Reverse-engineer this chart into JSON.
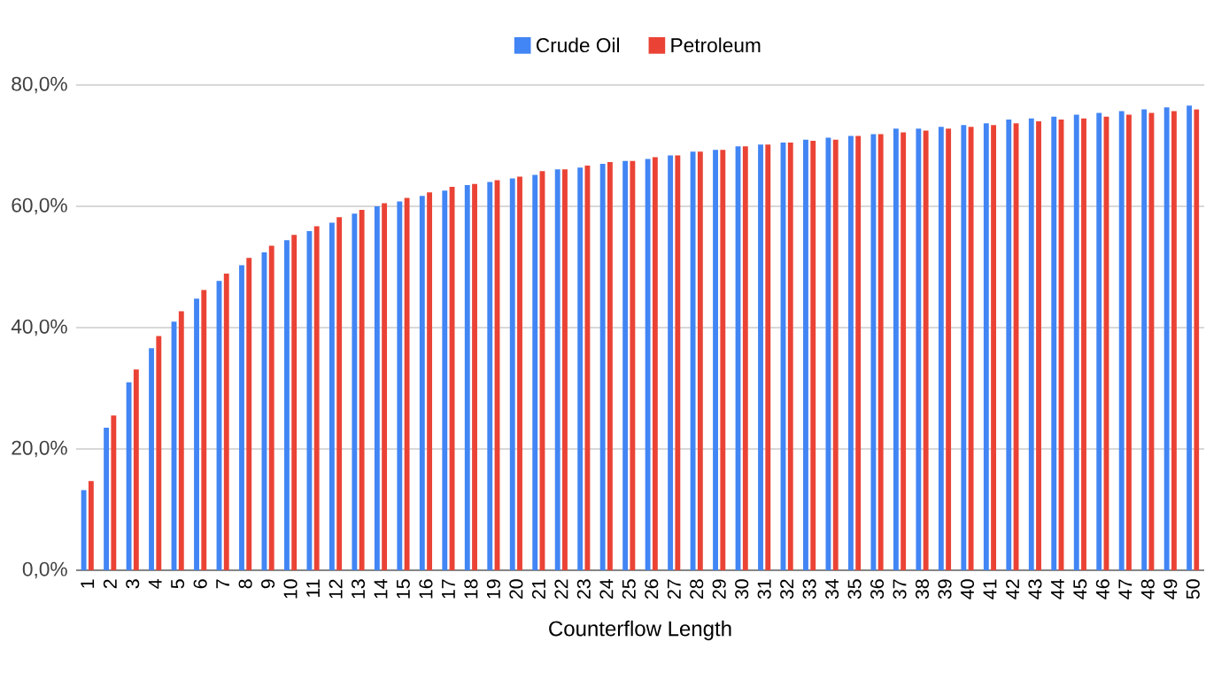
{
  "chart_data": {
    "type": "bar",
    "xlabel": "Counterflow Length",
    "categories": [
      "1",
      "2",
      "3",
      "4",
      "5",
      "6",
      "7",
      "8",
      "9",
      "10",
      "11",
      "12",
      "13",
      "14",
      "15",
      "16",
      "17",
      "18",
      "19",
      "20",
      "21",
      "22",
      "23",
      "24",
      "25",
      "26",
      "27",
      "28",
      "29",
      "30",
      "31",
      "32",
      "33",
      "34",
      "35",
      "36",
      "37",
      "38",
      "39",
      "40",
      "41",
      "42",
      "43",
      "44",
      "45",
      "46",
      "47",
      "48",
      "49",
      "50"
    ],
    "series": [
      {
        "name": "Crude Oil",
        "color": "#4285f4",
        "values": [
          13.2,
          23.5,
          31.0,
          36.6,
          41.0,
          44.8,
          47.7,
          50.3,
          52.4,
          54.4,
          55.9,
          57.3,
          58.8,
          60.0,
          60.8,
          61.7,
          62.6,
          63.5,
          64.0,
          64.6,
          65.2,
          66.1,
          66.4,
          67.0,
          67.5,
          67.8,
          68.4,
          69.0,
          69.3,
          69.9,
          70.2,
          70.5,
          71.0,
          71.3,
          71.6,
          71.9,
          72.8,
          72.8,
          73.1,
          73.4,
          73.7,
          74.3,
          74.5,
          74.8,
          75.1,
          75.4,
          75.7,
          76.0,
          76.3,
          76.6
        ]
      },
      {
        "name": "Petroleum",
        "color": "#ea4335",
        "values": [
          14.7,
          25.5,
          33.1,
          38.6,
          42.7,
          46.2,
          48.9,
          51.5,
          53.5,
          55.3,
          56.7,
          58.2,
          59.4,
          60.5,
          61.4,
          62.3,
          63.2,
          63.7,
          64.3,
          64.9,
          65.8,
          66.1,
          66.7,
          67.3,
          67.5,
          68.1,
          68.4,
          69.0,
          69.3,
          69.9,
          70.2,
          70.5,
          70.8,
          71.0,
          71.6,
          71.9,
          72.2,
          72.5,
          72.8,
          73.1,
          73.4,
          73.7,
          74.0,
          74.3,
          74.5,
          74.8,
          75.1,
          75.4,
          75.7,
          76.0
        ]
      }
    ],
    "ylim": [
      0,
      80
    ],
    "yticks": [
      {
        "value": 0,
        "label": "0,0%"
      },
      {
        "value": 20,
        "label": "20,0%"
      },
      {
        "value": 40,
        "label": "40,0%"
      },
      {
        "value": 60,
        "label": "60,0%"
      },
      {
        "value": 80,
        "label": "80,0%"
      }
    ],
    "grid": "y",
    "legend": "top"
  }
}
